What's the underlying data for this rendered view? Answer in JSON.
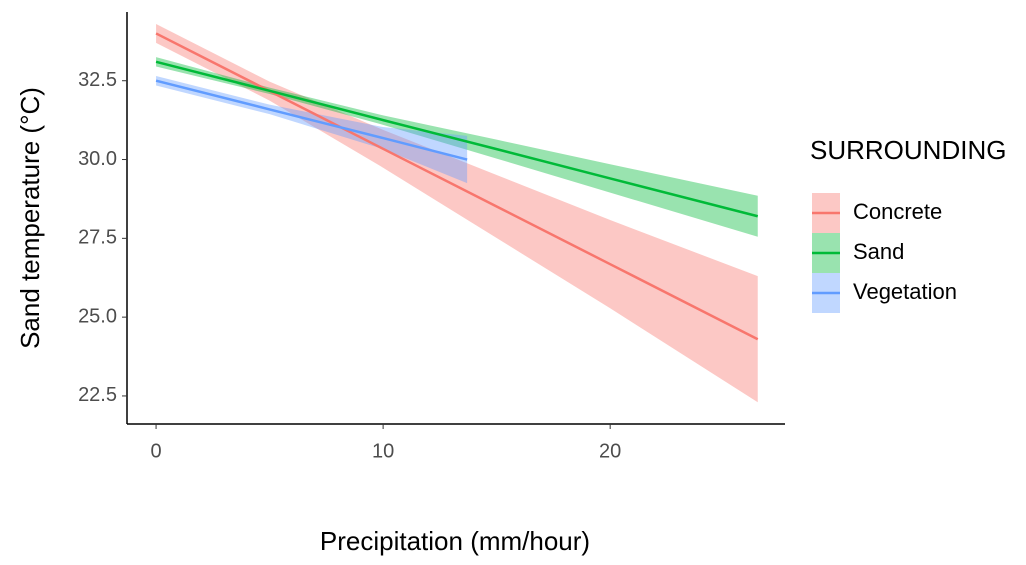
{
  "chart_data": {
    "type": "ribbon-line",
    "x_label": "Precipitation (mm/hour)",
    "y_label": "Sand temperature (°C)",
    "legend_title": "SURROUNDING",
    "legend_position": "right",
    "xlim": [
      -1.28,
      27.7
    ],
    "ylim": [
      21.61,
      34.68
    ],
    "xticks": [
      0,
      10,
      20
    ],
    "yticks": [
      32.5,
      {
        "value": 30,
        "label": "30.0"
      },
      27.5,
      {
        "value": 25,
        "label": "25.0"
      },
      22.5
    ],
    "grid": false,
    "series": [
      {
        "name": "Concrete",
        "color": "#F8766D",
        "x": [
          0,
          5,
          10,
          15,
          20,
          26.5
        ],
        "values": [
          34.0,
          32.17,
          30.34,
          28.51,
          26.68,
          24.3
        ],
        "lower": [
          33.7,
          31.87,
          29.74,
          27.51,
          25.28,
          22.3
        ],
        "upper": [
          34.3,
          32.47,
          30.94,
          29.51,
          28.08,
          26.3
        ]
      },
      {
        "name": "Sand",
        "color": "#00BA38",
        "x": [
          0,
          5,
          10,
          15,
          20,
          26.5
        ],
        "values": [
          33.1,
          32.18,
          31.25,
          30.33,
          29.4,
          28.2
        ],
        "lower": [
          32.95,
          32.08,
          31.1,
          30.03,
          28.95,
          27.55
        ],
        "upper": [
          33.25,
          32.28,
          31.4,
          30.63,
          29.85,
          28.85
        ]
      },
      {
        "name": "Vegetation",
        "color": "#619CFF",
        "x": [
          0,
          5,
          10,
          13.7
        ],
        "values": [
          32.5,
          31.59,
          30.68,
          30.0
        ],
        "lower": [
          32.35,
          31.44,
          30.33,
          29.25
        ],
        "upper": [
          32.65,
          31.74,
          31.03,
          30.75
        ]
      }
    ]
  }
}
